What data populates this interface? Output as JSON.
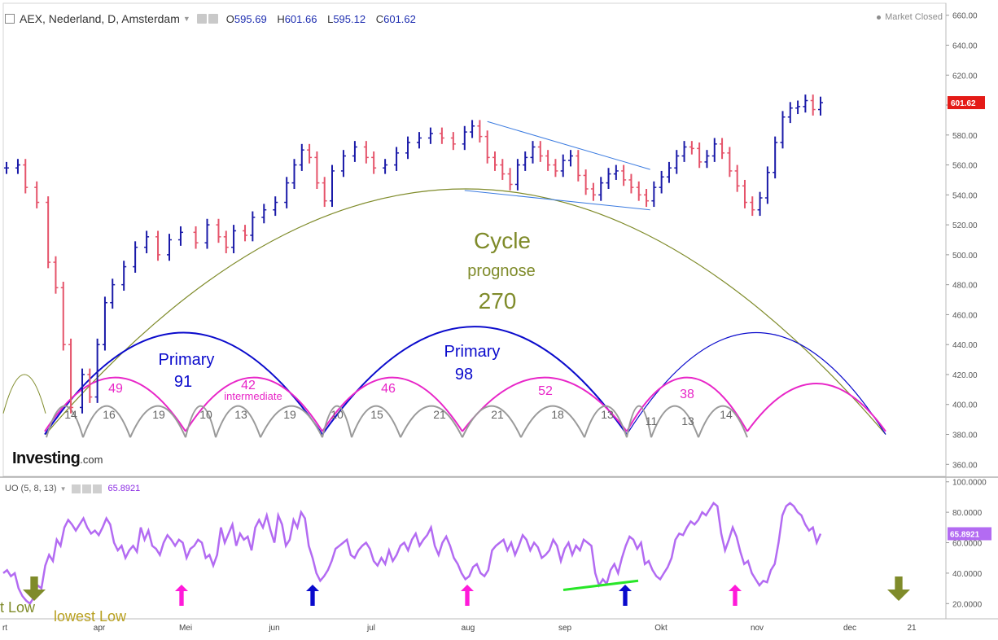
{
  "header": {
    "symbol": "AEX, Nederland, D, Amsterdam",
    "open_label": "O",
    "open": "595.69",
    "high_label": "H",
    "high": "601.66",
    "low_label": "L",
    "low": "595.12",
    "close_label": "C",
    "close": "601.62",
    "market_status": "Market Closed"
  },
  "indicator_header": {
    "name": "UO (5, 8, 13)",
    "value": "65.8921"
  },
  "logo": {
    "brand": "Investing",
    "suffix": ".com"
  },
  "colors": {
    "up_bar": "#1a1aa8",
    "down_bar": "#e5536a",
    "cycle": "#7f8b2a",
    "primary": "#0b0bcc",
    "intermediate": "#e826c8",
    "minor": "#9a9a9a",
    "oscillator": "#b36bf2",
    "price_tag": "#e41b17",
    "uo_tag": "#b36bf2",
    "divergence": "#28e628"
  },
  "chart_data": [
    {
      "type": "line",
      "title": "AEX, Nederland, D, Amsterdam",
      "price_axis": {
        "ticks": [
          "660.00",
          "640.00",
          "620.00",
          "600.00",
          "580.00",
          "560.00",
          "540.00",
          "520.00",
          "500.00",
          "480.00",
          "460.00",
          "440.00",
          "420.00",
          "400.00",
          "380.00",
          "360.00"
        ],
        "ylim": [
          352,
          668
        ]
      },
      "last_price_tag": "601.62",
      "x_axis": {
        "labels": [
          "rt",
          "apr",
          "Mei",
          "jun",
          "jul",
          "aug",
          "sep",
          "Okt",
          "nov",
          "dec",
          "21"
        ]
      },
      "price_path": [
        [
          0,
          558
        ],
        [
          3,
          560
        ],
        [
          5,
          545
        ],
        [
          8,
          535
        ],
        [
          11,
          495
        ],
        [
          13,
          478
        ],
        [
          15,
          440
        ],
        [
          17,
          398
        ],
        [
          20,
          420
        ],
        [
          22,
          405
        ],
        [
          24,
          440
        ],
        [
          26,
          468
        ],
        [
          28,
          480
        ],
        [
          31,
          492
        ],
        [
          34,
          505
        ],
        [
          37,
          512
        ],
        [
          40,
          500
        ],
        [
          43,
          510
        ],
        [
          46,
          515
        ],
        [
          50,
          508
        ],
        [
          53,
          520
        ],
        [
          56,
          512
        ],
        [
          58,
          505
        ],
        [
          60,
          516
        ],
        [
          63,
          513
        ],
        [
          65,
          525
        ],
        [
          68,
          530
        ],
        [
          71,
          535
        ],
        [
          74,
          548
        ],
        [
          76,
          560
        ],
        [
          78,
          570
        ],
        [
          80,
          565
        ],
        [
          82,
          548
        ],
        [
          84,
          536
        ],
        [
          86,
          556
        ],
        [
          89,
          566
        ],
        [
          92,
          572
        ],
        [
          95,
          565
        ],
        [
          97,
          558
        ],
        [
          100,
          560
        ],
        [
          103,
          568
        ],
        [
          106,
          575
        ],
        [
          109,
          578
        ],
        [
          112,
          581
        ],
        [
          115,
          578
        ],
        [
          118,
          574
        ],
        [
          121,
          582
        ],
        [
          123,
          586
        ],
        [
          125,
          579
        ],
        [
          127,
          565
        ],
        [
          129,
          560
        ],
        [
          131,
          554
        ],
        [
          133,
          547
        ],
        [
          135,
          560
        ],
        [
          137,
          565
        ],
        [
          139,
          572
        ],
        [
          141,
          566
        ],
        [
          143,
          560
        ],
        [
          145,
          556
        ],
        [
          147,
          563
        ],
        [
          149,
          566
        ],
        [
          151,
          553
        ],
        [
          153,
          544
        ],
        [
          155,
          540
        ],
        [
          157,
          548
        ],
        [
          159,
          554
        ],
        [
          161,
          556
        ],
        [
          163,
          550
        ],
        [
          165,
          545
        ],
        [
          167,
          540
        ],
        [
          169,
          536
        ],
        [
          171,
          545
        ],
        [
          173,
          552
        ],
        [
          175,
          558
        ],
        [
          177,
          566
        ],
        [
          179,
          572
        ],
        [
          181,
          571
        ],
        [
          183,
          562
        ],
        [
          185,
          566
        ],
        [
          187,
          574
        ],
        [
          189,
          568
        ],
        [
          191,
          556
        ],
        [
          193,
          546
        ],
        [
          195,
          535
        ],
        [
          197,
          530
        ],
        [
          199,
          538
        ],
        [
          201,
          555
        ],
        [
          203,
          575
        ],
        [
          205,
          592
        ],
        [
          207,
          598
        ],
        [
          209,
          599
        ],
        [
          211,
          603
        ],
        [
          213,
          597
        ],
        [
          215,
          601.62
        ]
      ],
      "projection": {
        "cycle_label": "Cycle",
        "subtitle": "prognose",
        "length": "270"
      },
      "primary_cycles": [
        {
          "label": "Primary",
          "length": "91"
        },
        {
          "label": "Primary",
          "length": "98"
        }
      ],
      "intermediate_cycles": [
        {
          "length": "49"
        },
        {
          "length": "42",
          "note": "intermediate"
        },
        {
          "length": "46"
        },
        {
          "length": "52"
        },
        {
          "length": "38"
        }
      ],
      "minor_cycles": [
        "14",
        "16",
        "19",
        "10",
        "13",
        "19",
        "10",
        "15",
        "21",
        "21",
        "18",
        "13",
        "11",
        "13",
        "14"
      ],
      "trend_lines": [
        {
          "from": [
            127,
            589
          ],
          "to": [
            170,
            557
          ]
        },
        {
          "from": [
            121,
            543
          ],
          "to": [
            170,
            530
          ]
        }
      ]
    },
    {
      "type": "line",
      "title": "UO (5, 8, 13)",
      "axis": {
        "ticks": [
          "100.0000",
          "80.0000",
          "60.0000",
          "40.0000",
          "20.0000"
        ],
        "ylim": [
          10,
          102
        ]
      },
      "last_value_tag": "65.8921",
      "values": [
        40,
        42,
        38,
        40,
        30,
        25,
        22,
        20,
        24,
        32,
        30,
        45,
        52,
        48,
        62,
        58,
        70,
        75,
        72,
        68,
        72,
        76,
        70,
        66,
        68,
        65,
        70,
        76,
        72,
        60,
        55,
        58,
        50,
        55,
        58,
        54,
        70,
        62,
        68,
        58,
        56,
        52,
        60,
        65,
        62,
        58,
        62,
        60,
        50,
        56,
        58,
        62,
        60,
        50,
        52,
        45,
        52,
        70,
        60,
        66,
        72,
        58,
        66,
        62,
        64,
        55,
        70,
        75,
        70,
        78,
        68,
        60,
        78,
        72,
        58,
        62,
        75,
        70,
        80,
        76,
        58,
        50,
        40,
        35,
        38,
        42,
        48,
        56,
        58,
        60,
        62,
        52,
        50,
        55,
        58,
        60,
        56,
        48,
        45,
        50,
        46,
        55,
        48,
        52,
        58,
        60,
        55,
        62,
        66,
        58,
        62,
        65,
        70,
        58,
        52,
        60,
        64,
        58,
        50,
        46,
        40,
        36,
        38,
        44,
        46,
        40,
        38,
        42,
        55,
        58,
        60,
        62,
        55,
        60,
        52,
        58,
        65,
        62,
        55,
        60,
        57,
        50,
        52,
        55,
        62,
        58,
        48,
        56,
        60,
        52,
        58,
        55,
        62,
        60,
        58,
        40,
        32,
        36,
        33,
        42,
        46,
        40,
        50,
        58,
        64,
        62,
        56,
        60,
        46,
        48,
        42,
        38,
        36,
        40,
        44,
        50,
        62,
        66,
        65,
        70,
        74,
        72,
        75,
        80,
        78,
        82,
        86,
        84,
        66,
        55,
        62,
        70,
        64,
        54,
        46,
        48,
        40,
        36,
        32,
        35,
        34,
        42,
        46,
        60,
        78,
        84,
        86,
        84,
        80,
        78,
        72,
        68,
        70,
        60,
        65.89
      ],
      "divergence_line": {
        "from_value": 29,
        "to_value": 35
      },
      "arrows": [
        {
          "kind": "down",
          "color": "olive"
        },
        {
          "kind": "up",
          "color": "magenta"
        },
        {
          "kind": "up",
          "color": "blue"
        },
        {
          "kind": "up",
          "color": "magenta"
        },
        {
          "kind": "up",
          "color": "blue"
        },
        {
          "kind": "up",
          "color": "magenta"
        },
        {
          "kind": "down",
          "color": "olive"
        }
      ],
      "annotations": [
        "t Low",
        "lowest Low"
      ]
    }
  ]
}
